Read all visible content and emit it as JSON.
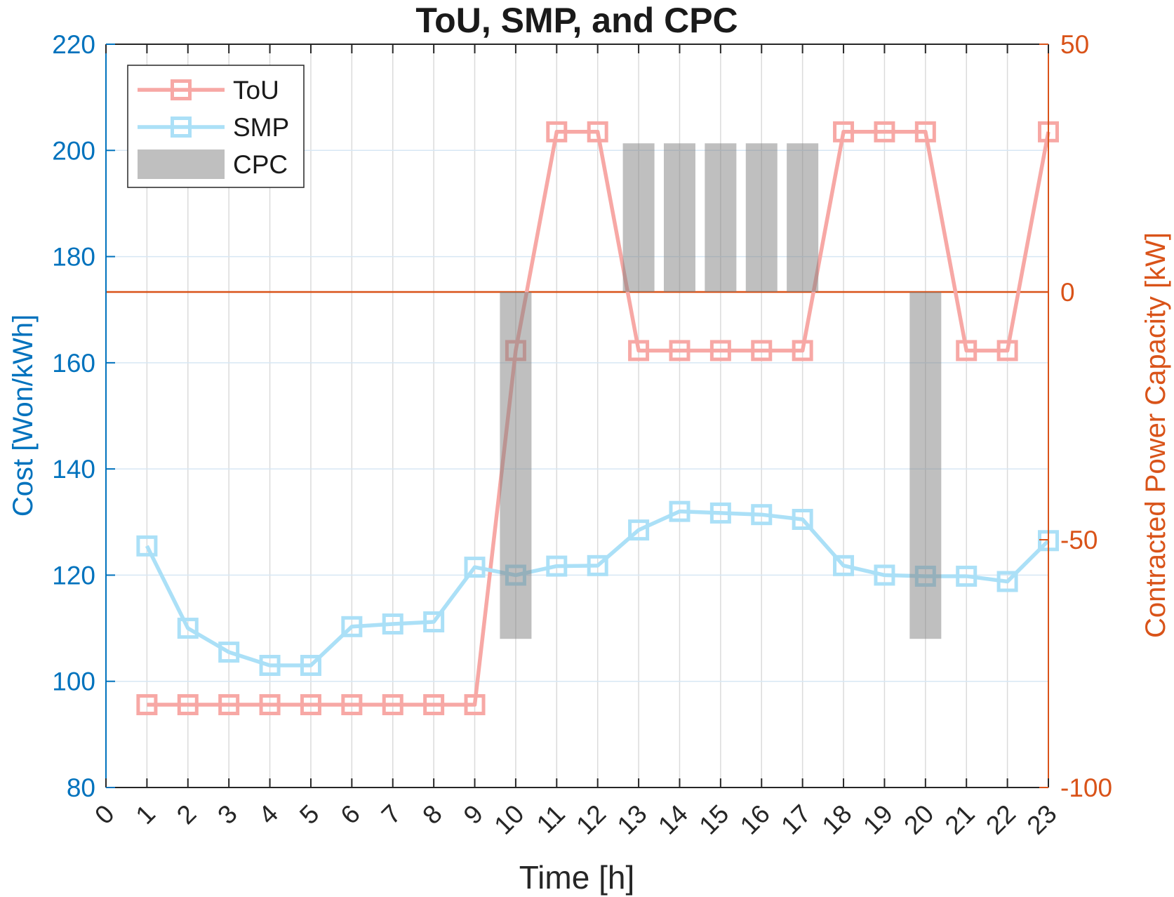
{
  "figure": {
    "background": "#ffffff",
    "axes_color": "#262626",
    "grid_vertical_color": "#DBDBDB",
    "grid_horizontal_color": "#D7E7F4"
  },
  "chart_data": {
    "type": "line+bar",
    "title": "ToU, SMP, and CPC",
    "xlabel": "Time [h]",
    "ylabel_left": "Cost [Won/kWh]",
    "ylabel_right": "Contracted Power Capacity [kW]",
    "x_hours": [
      1,
      2,
      3,
      4,
      5,
      6,
      7,
      8,
      9,
      10,
      11,
      12,
      13,
      14,
      15,
      16,
      17,
      18,
      19,
      20,
      21,
      22,
      23
    ],
    "x_ticks": [
      0,
      1,
      2,
      3,
      4,
      5,
      6,
      7,
      8,
      9,
      10,
      11,
      12,
      13,
      14,
      15,
      16,
      17,
      18,
      19,
      20,
      21,
      22,
      23
    ],
    "y_left": {
      "min": 80,
      "max": 220,
      "ticks": [
        80,
        100,
        120,
        140,
        160,
        180,
        200,
        220
      ],
      "color": "#0072BD"
    },
    "y_right": {
      "min": -100,
      "max": 50,
      "ticks": [
        -100,
        -50,
        0,
        50
      ],
      "color": "#D95319"
    },
    "grid": {
      "vertical": true,
      "horizontal": true
    },
    "legend": {
      "position": "top-left"
    },
    "zero_line": {
      "axis": "right",
      "value": 0,
      "color": "#D95319"
    },
    "series": [
      {
        "name": "ToU",
        "type": "line",
        "axis": "left",
        "color": "#F7A8A5",
        "marker": "square",
        "values": [
          95.6,
          95.6,
          95.6,
          95.6,
          95.6,
          95.6,
          95.6,
          95.6,
          95.6,
          162.3,
          203.5,
          203.5,
          162.3,
          162.3,
          162.3,
          162.3,
          162.3,
          203.5,
          203.5,
          203.5,
          162.3,
          162.3,
          203.5
        ]
      },
      {
        "name": "SMP",
        "type": "line",
        "axis": "left",
        "color": "#ABE0F7",
        "marker": "square",
        "values": [
          125.5,
          110.0,
          105.5,
          103.0,
          103.0,
          110.3,
          110.8,
          111.2,
          121.5,
          120.0,
          121.7,
          121.8,
          128.5,
          132.0,
          131.7,
          131.4,
          130.5,
          121.8,
          120.0,
          119.8,
          119.8,
          118.8,
          126.5
        ]
      },
      {
        "name": "CPC",
        "type": "bar",
        "axis": "right",
        "color": "#808080",
        "opacity": 0.5,
        "bars": [
          {
            "hour": 10,
            "value": -70
          },
          {
            "hour": 13,
            "value": 30
          },
          {
            "hour": 14,
            "value": 30
          },
          {
            "hour": 15,
            "value": 30
          },
          {
            "hour": 16,
            "value": 30
          },
          {
            "hour": 17,
            "value": 30
          },
          {
            "hour": 20,
            "value": -70
          }
        ]
      }
    ]
  }
}
